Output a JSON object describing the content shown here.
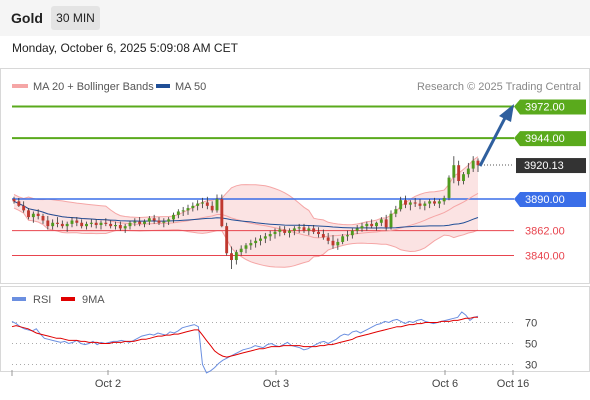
{
  "header": {
    "instrument": "Gold",
    "timeframe": "30 MIN"
  },
  "timestamp": "Monday, October 6, 2025 5:09:08 AM CET",
  "legend": {
    "bollinger": "MA 20 + Bollinger Bands",
    "ma50": "MA 50",
    "credit": "Research © 2025 Trading Central",
    "rsi": "RSI",
    "rsi_ma": "9MA"
  },
  "colors": {
    "resistance": "#5aaa1c",
    "current": "#333333",
    "pivot": "#3a6ee8",
    "support": "#e8444e",
    "bollinger": "#f5a6a6",
    "bollinger_fill": "#fbe3e3",
    "ma50": "#1f4e96",
    "rsi": "#6b8fe0",
    "rsi_ma": "#e00000",
    "arrow": "#2f5f9e",
    "candle_up": "#4f9a1e",
    "candle_down": "#c0382f"
  },
  "chart_data": {
    "type": "candlestick",
    "levels": [
      {
        "role": "resistance",
        "value": 3972.0,
        "label": "3972.00"
      },
      {
        "role": "resistance",
        "value": 3944.0,
        "label": "3944.00"
      },
      {
        "role": "current",
        "value": 3920.13,
        "label": "3920.13"
      },
      {
        "role": "pivot",
        "value": 3890.0,
        "label": "3890.00"
      },
      {
        "role": "support",
        "value": 3862.0,
        "label": "3862.00"
      },
      {
        "role": "support",
        "value": 3840.0,
        "label": "3840.00"
      }
    ],
    "price_range": [
      3818,
      3990
    ],
    "x_labels": [
      "Oct 2",
      "Oct 3",
      "Oct 6",
      "Oct 16"
    ],
    "candles": [
      [
        3890,
        3892,
        3886,
        3888
      ],
      [
        3888,
        3891,
        3883,
        3884
      ],
      [
        3884,
        3888,
        3878,
        3880
      ],
      [
        3880,
        3882,
        3872,
        3874
      ],
      [
        3874,
        3879,
        3869,
        3877
      ],
      [
        3877,
        3881,
        3872,
        3875
      ],
      [
        3875,
        3877,
        3868,
        3871
      ],
      [
        3871,
        3875,
        3863,
        3866
      ],
      [
        3866,
        3872,
        3863,
        3869
      ],
      [
        3869,
        3874,
        3865,
        3868
      ],
      [
        3868,
        3871,
        3864,
        3866
      ],
      [
        3866,
        3870,
        3861,
        3868
      ],
      [
        3868,
        3874,
        3865,
        3871
      ],
      [
        3871,
        3874,
        3866,
        3869
      ],
      [
        3869,
        3872,
        3864,
        3866
      ],
      [
        3866,
        3870,
        3863,
        3868
      ],
      [
        3868,
        3872,
        3865,
        3869
      ],
      [
        3869,
        3872,
        3864,
        3867
      ],
      [
        3867,
        3871,
        3863,
        3869
      ],
      [
        3869,
        3873,
        3866,
        3868
      ],
      [
        3868,
        3871,
        3864,
        3866
      ],
      [
        3866,
        3870,
        3863,
        3867
      ],
      [
        3867,
        3870,
        3862,
        3864
      ],
      [
        3864,
        3868,
        3860,
        3866
      ],
      [
        3866,
        3871,
        3863,
        3869
      ],
      [
        3869,
        3873,
        3866,
        3870
      ],
      [
        3870,
        3874,
        3866,
        3868
      ],
      [
        3868,
        3872,
        3865,
        3870
      ],
      [
        3870,
        3875,
        3867,
        3873
      ],
      [
        3873,
        3876,
        3868,
        3871
      ],
      [
        3871,
        3874,
        3867,
        3869
      ],
      [
        3869,
        3873,
        3865,
        3870
      ],
      [
        3870,
        3874,
        3867,
        3872
      ],
      [
        3872,
        3878,
        3869,
        3876
      ],
      [
        3876,
        3881,
        3873,
        3879
      ],
      [
        3879,
        3883,
        3875,
        3880
      ],
      [
        3880,
        3885,
        3876,
        3882
      ],
      [
        3882,
        3887,
        3879,
        3884
      ],
      [
        3884,
        3889,
        3880,
        3886
      ],
      [
        3886,
        3891,
        3882,
        3887
      ],
      [
        3887,
        3892,
        3881,
        3884
      ],
      [
        3884,
        3888,
        3878,
        3880
      ],
      [
        3880,
        3894,
        3878,
        3890
      ],
      [
        3890,
        3894,
        3865,
        3866
      ],
      [
        3866,
        3869,
        3840,
        3842
      ],
      [
        3842,
        3848,
        3828,
        3836
      ],
      [
        3836,
        3845,
        3832,
        3843
      ],
      [
        3843,
        3849,
        3840,
        3846
      ],
      [
        3846,
        3851,
        3842,
        3849
      ],
      [
        3849,
        3854,
        3845,
        3851
      ],
      [
        3851,
        3856,
        3847,
        3853
      ],
      [
        3853,
        3858,
        3849,
        3855
      ],
      [
        3855,
        3860,
        3851,
        3857
      ],
      [
        3857,
        3862,
        3853,
        3859
      ],
      [
        3859,
        3864,
        3855,
        3861
      ],
      [
        3861,
        3866,
        3857,
        3863
      ],
      [
        3863,
        3866,
        3858,
        3860
      ],
      [
        3860,
        3864,
        3856,
        3862
      ],
      [
        3862,
        3866,
        3858,
        3864
      ],
      [
        3864,
        3868,
        3860,
        3865
      ],
      [
        3865,
        3868,
        3860,
        3862
      ],
      [
        3862,
        3866,
        3858,
        3864
      ],
      [
        3864,
        3867,
        3859,
        3861
      ],
      [
        3861,
        3865,
        3856,
        3859
      ],
      [
        3859,
        3863,
        3854,
        3856
      ],
      [
        3856,
        3860,
        3850,
        3853
      ],
      [
        3853,
        3858,
        3846,
        3849
      ],
      [
        3849,
        3855,
        3845,
        3852
      ],
      [
        3852,
        3859,
        3850,
        3857
      ],
      [
        3857,
        3862,
        3853,
        3858
      ],
      [
        3858,
        3864,
        3855,
        3862
      ],
      [
        3862,
        3867,
        3859,
        3864
      ],
      [
        3864,
        3869,
        3861,
        3866
      ],
      [
        3866,
        3870,
        3862,
        3868
      ],
      [
        3868,
        3872,
        3864,
        3866
      ],
      [
        3866,
        3870,
        3862,
        3869
      ],
      [
        3869,
        3874,
        3866,
        3872
      ],
      [
        3872,
        3876,
        3862,
        3865
      ],
      [
        3865,
        3880,
        3863,
        3877
      ],
      [
        3877,
        3884,
        3874,
        3881
      ],
      [
        3881,
        3892,
        3879,
        3889
      ],
      [
        3889,
        3893,
        3882,
        3885
      ],
      [
        3885,
        3889,
        3880,
        3887
      ],
      [
        3887,
        3891,
        3883,
        3886
      ],
      [
        3886,
        3890,
        3881,
        3884
      ],
      [
        3884,
        3888,
        3880,
        3886
      ],
      [
        3886,
        3890,
        3882,
        3888
      ],
      [
        3888,
        3891,
        3884,
        3886
      ],
      [
        3886,
        3890,
        3882,
        3888
      ],
      [
        3888,
        3893,
        3885,
        3891
      ],
      [
        3891,
        3911,
        3889,
        3909
      ],
      [
        3909,
        3928,
        3904,
        3920
      ],
      [
        3920,
        3924,
        3902,
        3906
      ],
      [
        3906,
        3914,
        3903,
        3912
      ],
      [
        3912,
        3922,
        3909,
        3917
      ],
      [
        3917,
        3928,
        3914,
        3924
      ],
      [
        3924,
        3926,
        3914,
        3920
      ]
    ],
    "rsi": {
      "ticks": [
        70,
        50,
        30
      ],
      "range": [
        20,
        80
      ],
      "values": [
        71,
        69,
        66,
        64,
        63,
        62,
        64,
        59,
        55,
        54,
        53,
        52,
        51,
        52,
        50,
        51,
        53,
        50,
        49,
        50,
        52,
        49,
        51,
        50,
        51,
        52,
        52,
        53,
        52,
        51,
        53,
        55,
        57,
        58,
        59,
        58,
        60,
        59,
        58,
        61,
        60,
        62,
        65,
        66,
        67,
        68,
        66,
        30,
        22,
        24,
        27,
        31,
        34,
        36,
        38,
        40,
        42,
        44,
        45,
        46,
        48,
        47,
        46,
        49,
        50,
        48,
        47,
        49,
        51,
        48,
        47,
        46,
        44,
        45,
        47,
        49,
        51,
        52,
        50,
        52,
        54,
        57,
        59,
        58,
        61,
        62,
        60,
        62,
        64,
        66,
        68,
        69,
        71,
        70,
        72,
        73,
        71,
        69,
        71,
        70,
        72,
        73,
        71,
        70,
        69,
        70,
        71,
        72,
        73,
        74,
        75,
        80,
        77,
        72,
        75,
        76
      ]
    },
    "rsi_ma": [
      66,
      67,
      66,
      65,
      64,
      62,
      60,
      59,
      58,
      57,
      56,
      55,
      55,
      54,
      53,
      53,
      53,
      52,
      52,
      51,
      51,
      51,
      50,
      50,
      50,
      51,
      51,
      51,
      52,
      52,
      52,
      53,
      54,
      54,
      55,
      56,
      57,
      57,
      58,
      58,
      59,
      59,
      60,
      61,
      62,
      63,
      63,
      58,
      53,
      48,
      43,
      40,
      38,
      37,
      38,
      39,
      40,
      41,
      42,
      43,
      44,
      45,
      45,
      46,
      47,
      47,
      47,
      48,
      48,
      48,
      48,
      48,
      47,
      47,
      47,
      47,
      48,
      48,
      49,
      49,
      50,
      51,
      52,
      53,
      54,
      56,
      57,
      58,
      59,
      60,
      61,
      62,
      63,
      64,
      65,
      66,
      66,
      67,
      68,
      68,
      69,
      69,
      70,
      70,
      70,
      70,
      71,
      71,
      71,
      72,
      72,
      73,
      74,
      74,
      75,
      75
    ]
  }
}
